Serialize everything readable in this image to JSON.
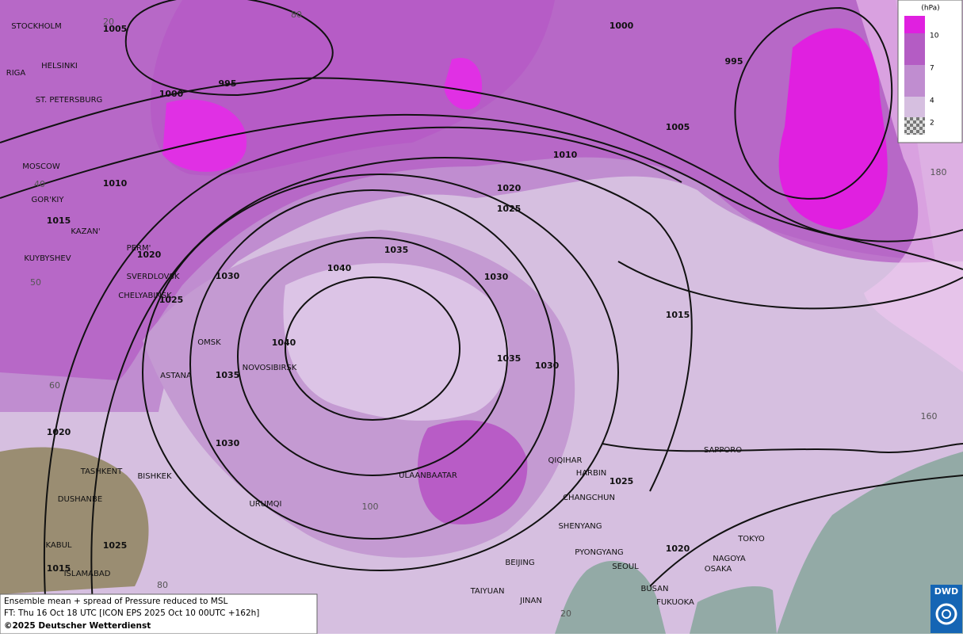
{
  "map": {
    "cities": [
      "STOCKHOLM",
      "HELSINKI",
      "RIGA",
      "ST. PETERSBURG",
      "MOSCOW",
      "GOR'KIY",
      "KAZAN'",
      "KUYBYSHEV",
      "PERM'",
      "SVERDLOVSK",
      "CHELYABINSK",
      "OMSK",
      "ASTANA",
      "NOVOSIBIRSK",
      "TASHKENT",
      "BISHKEK",
      "DUSHANBE",
      "URUMQI",
      "KABUL",
      "ISLAMABAD",
      "ULAANBAATAR",
      "QIQIHAR",
      "HARBIN",
      "CHANGCHUN",
      "SHENYANG",
      "PYONGYANG",
      "SEOUL",
      "BEIJING",
      "TAIYUAN",
      "JINAN",
      "BUSAN",
      "FUKUOKA",
      "SAPPORO",
      "TOKYO",
      "NAGOYA",
      "OSAKA"
    ],
    "isobar_labels": [
      "1005",
      "995",
      "1000",
      "1010",
      "1015",
      "1020",
      "1025",
      "1030",
      "1040",
      "1035",
      "1030",
      "1040",
      "1035",
      "1030",
      "1020",
      "1025",
      "1015",
      "1035",
      "1030",
      "1025",
      "1020",
      "1010",
      "1005",
      "1000",
      "995",
      "1015",
      "1025",
      "1020"
    ],
    "grid_labels": [
      "20",
      "80",
      "40",
      "50",
      "60",
      "100",
      "80",
      "180",
      "160",
      "20"
    ]
  },
  "legend": {
    "unit": "(hPa)",
    "levels": [
      "10",
      "7",
      "4",
      "2"
    ]
  },
  "caption": {
    "line1": "Ensemble mean + spread of Pressure reduced to MSL",
    "line2": "FT: Thu 16 Oct 18 UTC [ICON EPS 2025 Oct 10 00UTC +162h]",
    "line3": "©2025 Deutscher Wetterdienst"
  },
  "logo": {
    "text": "DWD"
  }
}
